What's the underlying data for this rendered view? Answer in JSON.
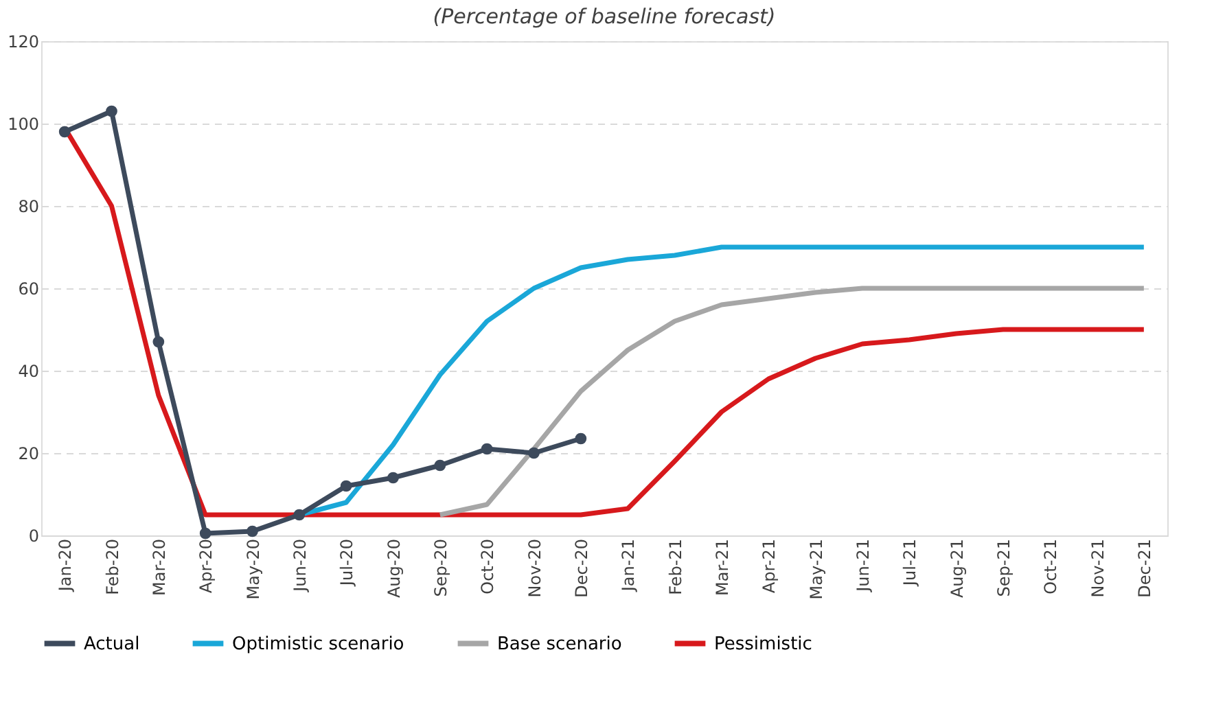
{
  "chart_data": {
    "type": "line",
    "title": "(Percentage of baseline forecast)",
    "categories": [
      "Jan-20",
      "Feb-20",
      "Mar-20",
      "Apr-20",
      "May-20",
      "Jun-20",
      "Jul-20",
      "Aug-20",
      "Sep-20",
      "Oct-20",
      "Nov-20",
      "Dec-20",
      "Jan-21",
      "Feb-21",
      "Mar-21",
      "Apr-21",
      "May-21",
      "Jun-21",
      "Jul-21",
      "Aug-21",
      "Sep-21",
      "Oct-21",
      "Nov-21",
      "Dec-21"
    ],
    "series": [
      {
        "name": "Actual",
        "color": "#3d4a5c",
        "marker": "circle",
        "values": [
          98,
          103,
          47,
          0.5,
          1,
          5,
          12,
          14,
          17,
          21,
          20,
          23.5,
          null,
          null,
          null,
          null,
          null,
          null,
          null,
          null,
          null,
          null,
          null,
          null
        ]
      },
      {
        "name": "Optimistic scenario",
        "color": "#1aa7d8",
        "marker": "none",
        "values": [
          null,
          null,
          null,
          null,
          null,
          5,
          8,
          22,
          39,
          52,
          60,
          65,
          67,
          68,
          70,
          70,
          70,
          70,
          70,
          70,
          70,
          70,
          70,
          70
        ]
      },
      {
        "name": "Base scenario",
        "color": "#a6a6a6",
        "marker": "none",
        "values": [
          null,
          null,
          null,
          null,
          null,
          null,
          null,
          null,
          5,
          7.5,
          21,
          35,
          45,
          52,
          56,
          57.5,
          59,
          60,
          60,
          60,
          60,
          60,
          60,
          60
        ]
      },
      {
        "name": "Pessimistic",
        "color": "#d7191c",
        "marker": "none",
        "values": [
          99,
          80,
          34,
          5,
          5,
          5,
          5,
          5,
          5,
          5,
          5,
          5,
          6.5,
          18,
          30,
          38,
          43,
          46.5,
          47.5,
          49,
          50,
          50,
          50,
          50
        ]
      }
    ],
    "ylim": [
      0,
      120
    ],
    "yticks": [
      0,
      20,
      40,
      60,
      80,
      100,
      120
    ],
    "grid": "y",
    "legend": "bottom"
  }
}
